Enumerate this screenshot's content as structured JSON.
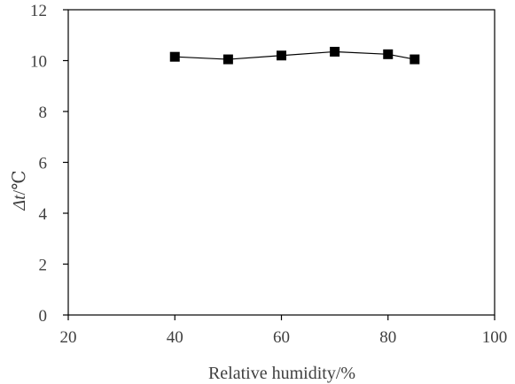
{
  "chart_data": {
    "type": "line",
    "title": "",
    "xlabel": "Relative humidity/%",
    "ylabel": {
      "italic": "Δt",
      "suffix": "/℃"
    },
    "xlim": [
      20,
      100
    ],
    "ylim": [
      0,
      12
    ],
    "x_ticks": [
      20,
      40,
      60,
      80,
      100
    ],
    "y_ticks": [
      0,
      2,
      4,
      6,
      8,
      10,
      12
    ],
    "grid": false,
    "legend": false,
    "series": [
      {
        "marker": "square",
        "color": "#000000",
        "x": [
          40,
          50,
          60,
          70,
          80,
          85
        ],
        "y": [
          10.15,
          10.05,
          10.2,
          10.35,
          10.25,
          10.05
        ]
      }
    ]
  }
}
